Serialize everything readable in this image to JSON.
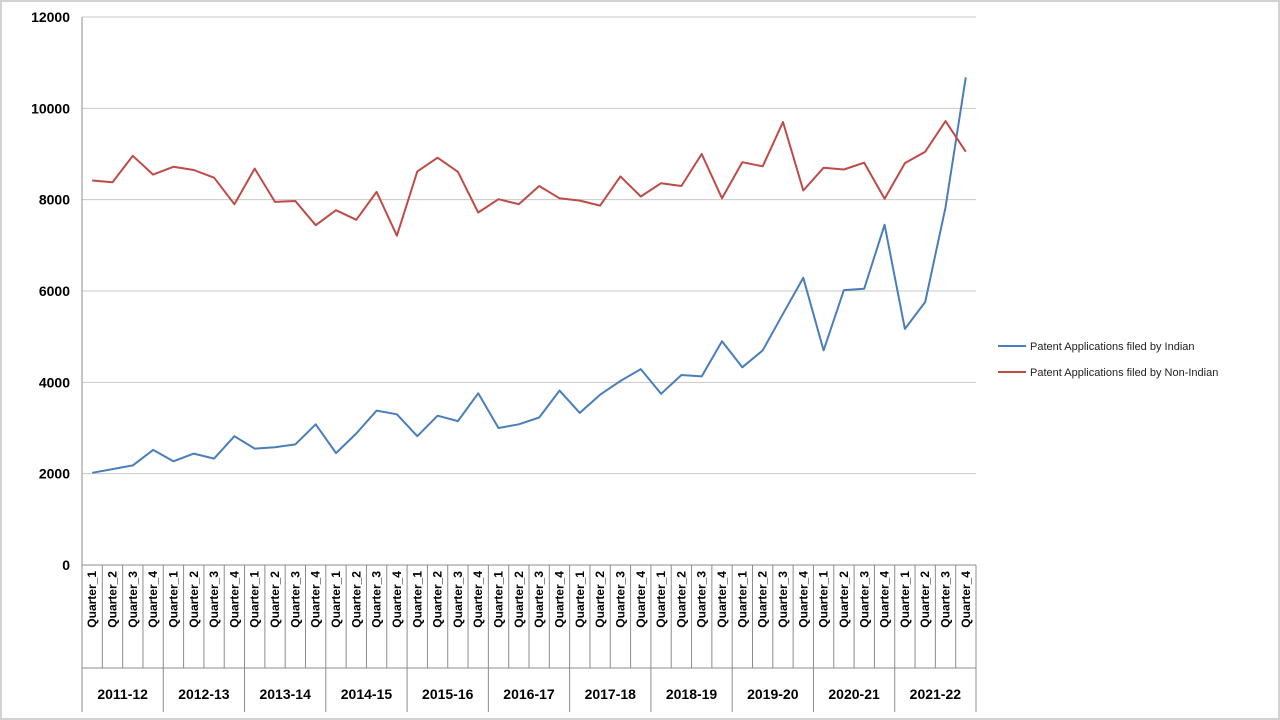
{
  "chart_data": {
    "type": "line",
    "title": "",
    "xlabel": "",
    "ylabel": "",
    "ylim": [
      0,
      12000
    ],
    "yticks": [
      "0",
      "2000",
      "4000",
      "6000",
      "8000",
      "10000",
      "12000"
    ],
    "grid": "horizontal",
    "legend_position": "right",
    "quarters": [
      "Quarter_1",
      "Quarter_2",
      "Quarter_3",
      "Quarter_4"
    ],
    "fiscal_years": [
      "2011-12",
      "2012-13",
      "2013-14",
      "2014-15",
      "2015-16",
      "2016-17",
      "2017-18",
      "2018-19",
      "2019-20",
      "2020-21",
      "2021-22"
    ],
    "series": [
      {
        "name": "Patent Applications filed by Indian",
        "color": "#4a7ebb",
        "values": [
          2020,
          2100,
          2180,
          2520,
          2270,
          2440,
          2330,
          2820,
          2550,
          2580,
          2640,
          3080,
          2450,
          2880,
          3380,
          3300,
          2820,
          3270,
          3150,
          3760,
          3000,
          3080,
          3230,
          3820,
          3330,
          3730,
          4030,
          4290,
          3750,
          4160,
          4130,
          4900,
          4330,
          4700,
          5500,
          6290,
          4700,
          6020,
          6050,
          7450,
          5170,
          5760,
          7830,
          10680
        ]
      },
      {
        "name": "Patent Applications filed by Non-Indian",
        "color": "#be4b48",
        "values": [
          8420,
          8380,
          8960,
          8550,
          8720,
          8650,
          8480,
          7900,
          8680,
          7950,
          7970,
          7440,
          7770,
          7560,
          8170,
          7210,
          8620,
          8920,
          8610,
          7720,
          8010,
          7900,
          8300,
          8030,
          7980,
          7870,
          8510,
          8070,
          8360,
          8300,
          9000,
          8030,
          8820,
          8730,
          9700,
          8200,
          8700,
          8660,
          8810,
          8020,
          8800,
          9050,
          9720,
          9050
        ]
      }
    ]
  }
}
